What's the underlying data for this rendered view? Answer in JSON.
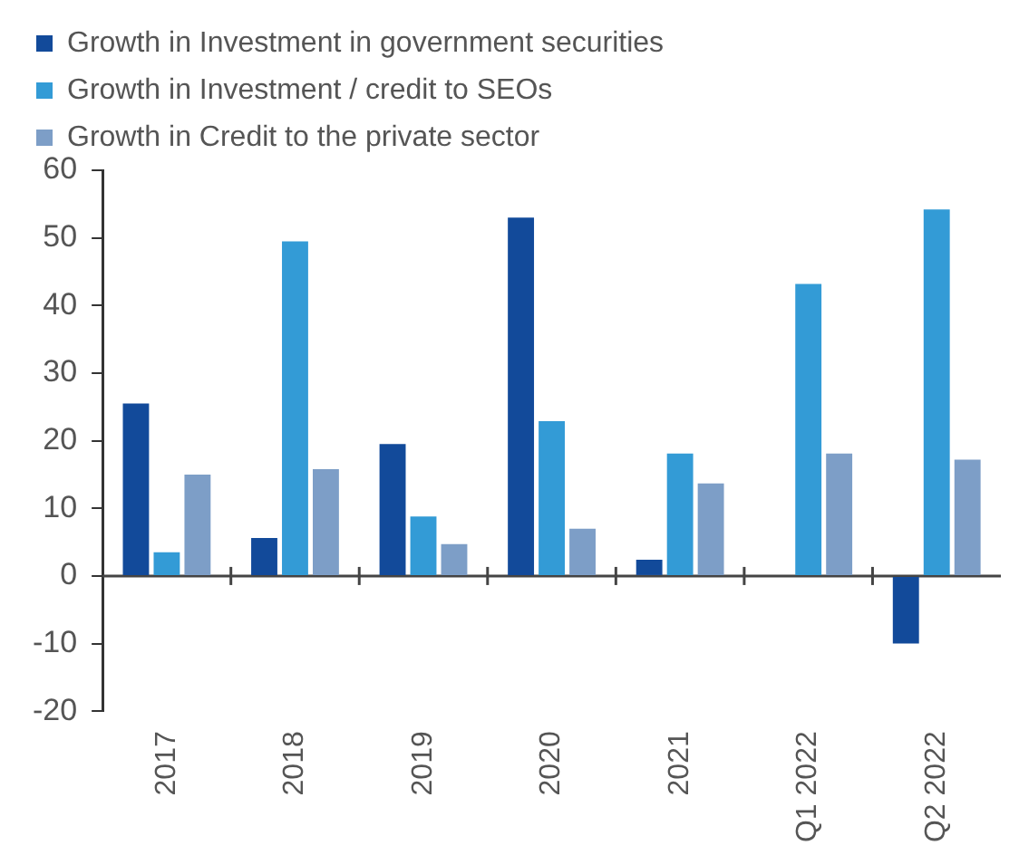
{
  "chart_data": {
    "type": "bar",
    "categories": [
      "2017",
      "2018",
      "2019",
      "2020",
      "2021",
      "Q1 2022",
      "Q2 2022"
    ],
    "series": [
      {
        "name": "Growth in Investment in government securities",
        "color": "#124a9a",
        "values": [
          25.5,
          5.6,
          19.5,
          53,
          2.4,
          0,
          -10
        ]
      },
      {
        "name": "Growth in Investment / credit to SEOs",
        "color": "#339bd6",
        "values": [
          3.5,
          49.5,
          8.8,
          22.9,
          18.1,
          43.2,
          54.2
        ]
      },
      {
        "name": "Growth in Credit to the private sector",
        "color": "#7d9ec7",
        "values": [
          15,
          15.8,
          4.7,
          7,
          13.7,
          18.1,
          17.2
        ]
      }
    ],
    "ylim": [
      -20,
      60
    ],
    "yticks": [
      -20,
      -10,
      0,
      10,
      20,
      30,
      40,
      50,
      60
    ],
    "legend": "top"
  }
}
